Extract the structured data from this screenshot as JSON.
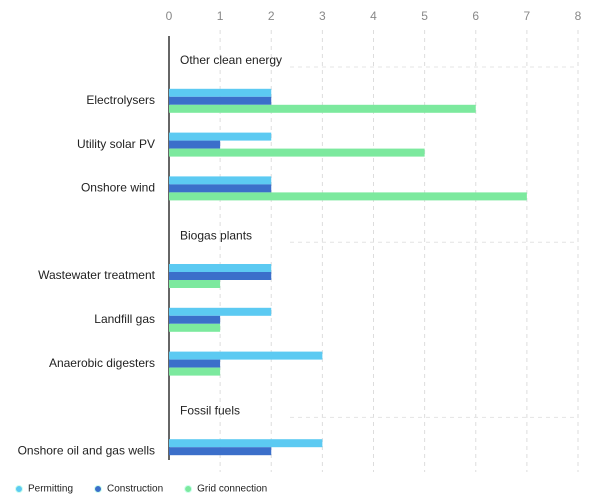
{
  "chart_data": {
    "type": "bar",
    "orientation": "horizontal",
    "groups": [
      {
        "name": "Other clean energy",
        "categories": [
          "Electrolysers",
          "Utility solar PV",
          "Onshore wind"
        ]
      },
      {
        "name": "Biogas plants",
        "categories": [
          "Wastewater treatment",
          "Landfill gas",
          "Anaerobic digesters"
        ]
      },
      {
        "name": "Fossil fuels",
        "categories": [
          "Onshore oil and gas wells"
        ]
      }
    ],
    "series": [
      {
        "name": "Permitting",
        "color": "#5ccaf2",
        "values": [
          2,
          2,
          2,
          2,
          2,
          3,
          3
        ]
      },
      {
        "name": "Construction",
        "color": "#3b6fca",
        "values": [
          2,
          1,
          2,
          2,
          1,
          1,
          2
        ]
      },
      {
        "name": "Grid connection",
        "color": "#7ce99e",
        "values": [
          6,
          5,
          7,
          1,
          1,
          1,
          null
        ]
      }
    ],
    "xlim": [
      0,
      8
    ],
    "xticks": [
      0,
      1,
      2,
      3,
      4,
      5,
      6,
      7,
      8
    ],
    "grid": true,
    "legend": "bottom"
  }
}
